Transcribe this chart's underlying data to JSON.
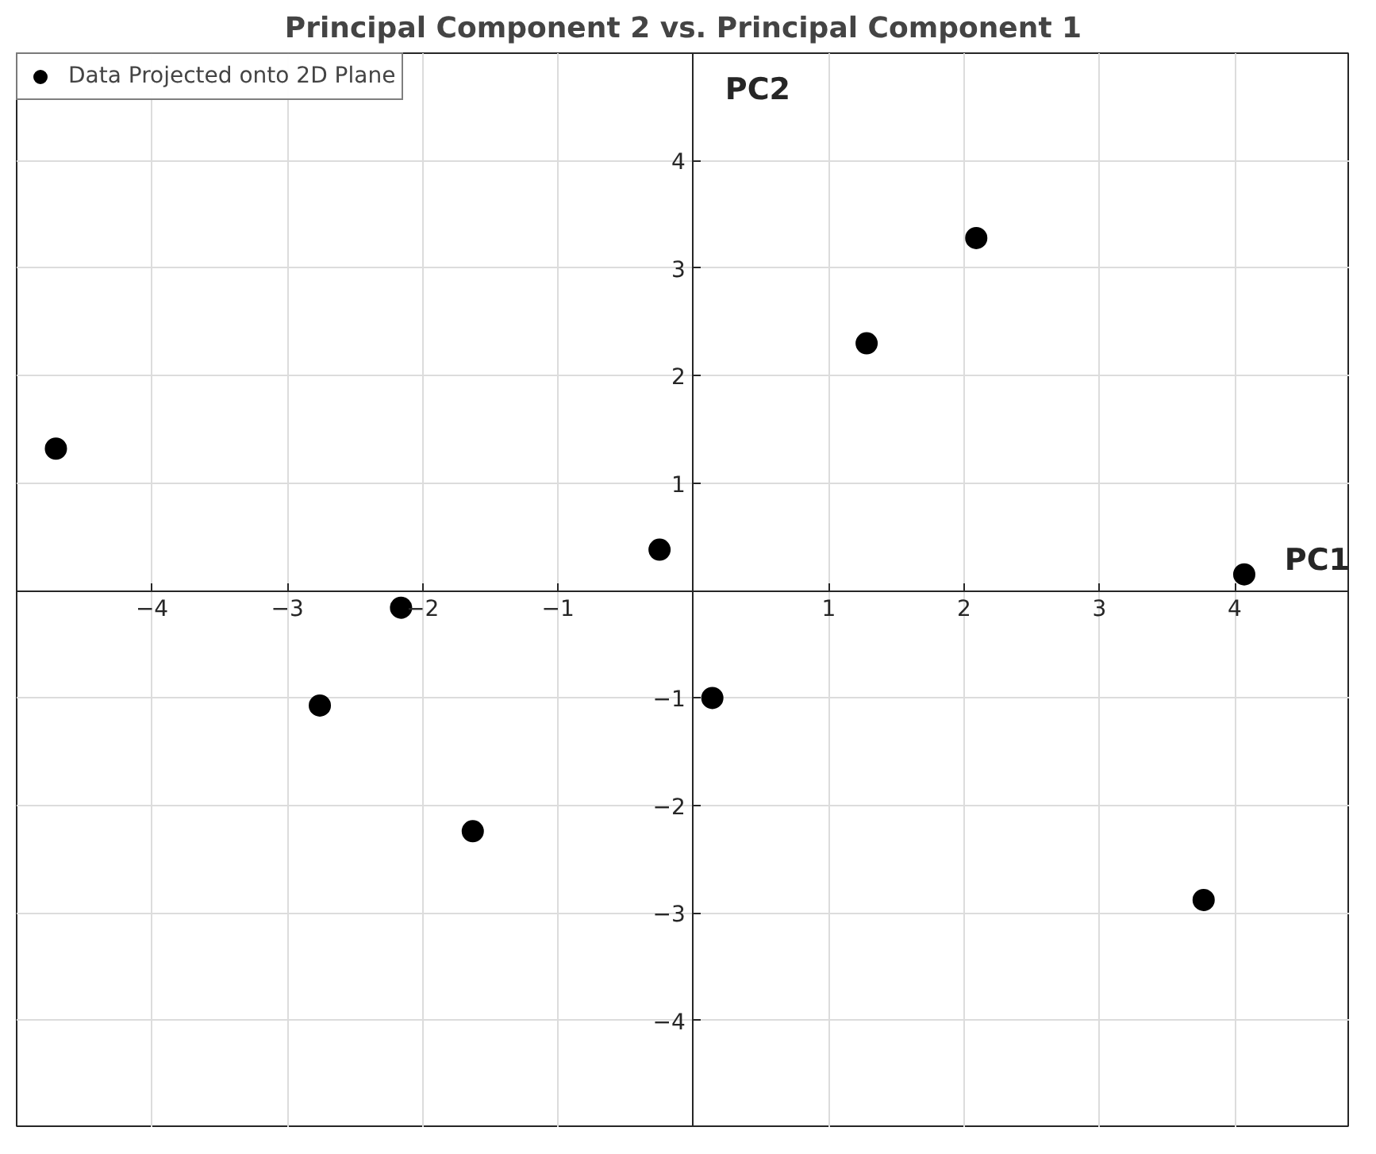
{
  "chart_data": {
    "type": "scatter",
    "title": "Principal Component 2 vs. Principal Component 1",
    "xlabel": "PC1",
    "ylabel": "PC2",
    "x": [
      -4.71,
      -2.76,
      -2.16,
      -1.63,
      -0.25,
      0.14,
      1.28,
      2.09,
      3.77,
      4.07
    ],
    "series": [
      {
        "name": "Data Projected onto 2D Plane",
        "color": "#000000",
        "values": [
          1.32,
          -1.07,
          -0.16,
          -2.24,
          0.38,
          -1.0,
          2.3,
          3.28,
          -2.88,
          0.15
        ]
      }
    ],
    "xlim": [
      -5,
      4.85
    ],
    "ylim": [
      -5,
      5
    ],
    "xticks": [
      -4,
      -3,
      -2,
      -1,
      1,
      2,
      3,
      4
    ],
    "yticks": [
      -4,
      -3,
      -2,
      -1,
      1,
      2,
      3,
      4
    ],
    "grid": true,
    "legend": "top left",
    "marker": "circle"
  }
}
